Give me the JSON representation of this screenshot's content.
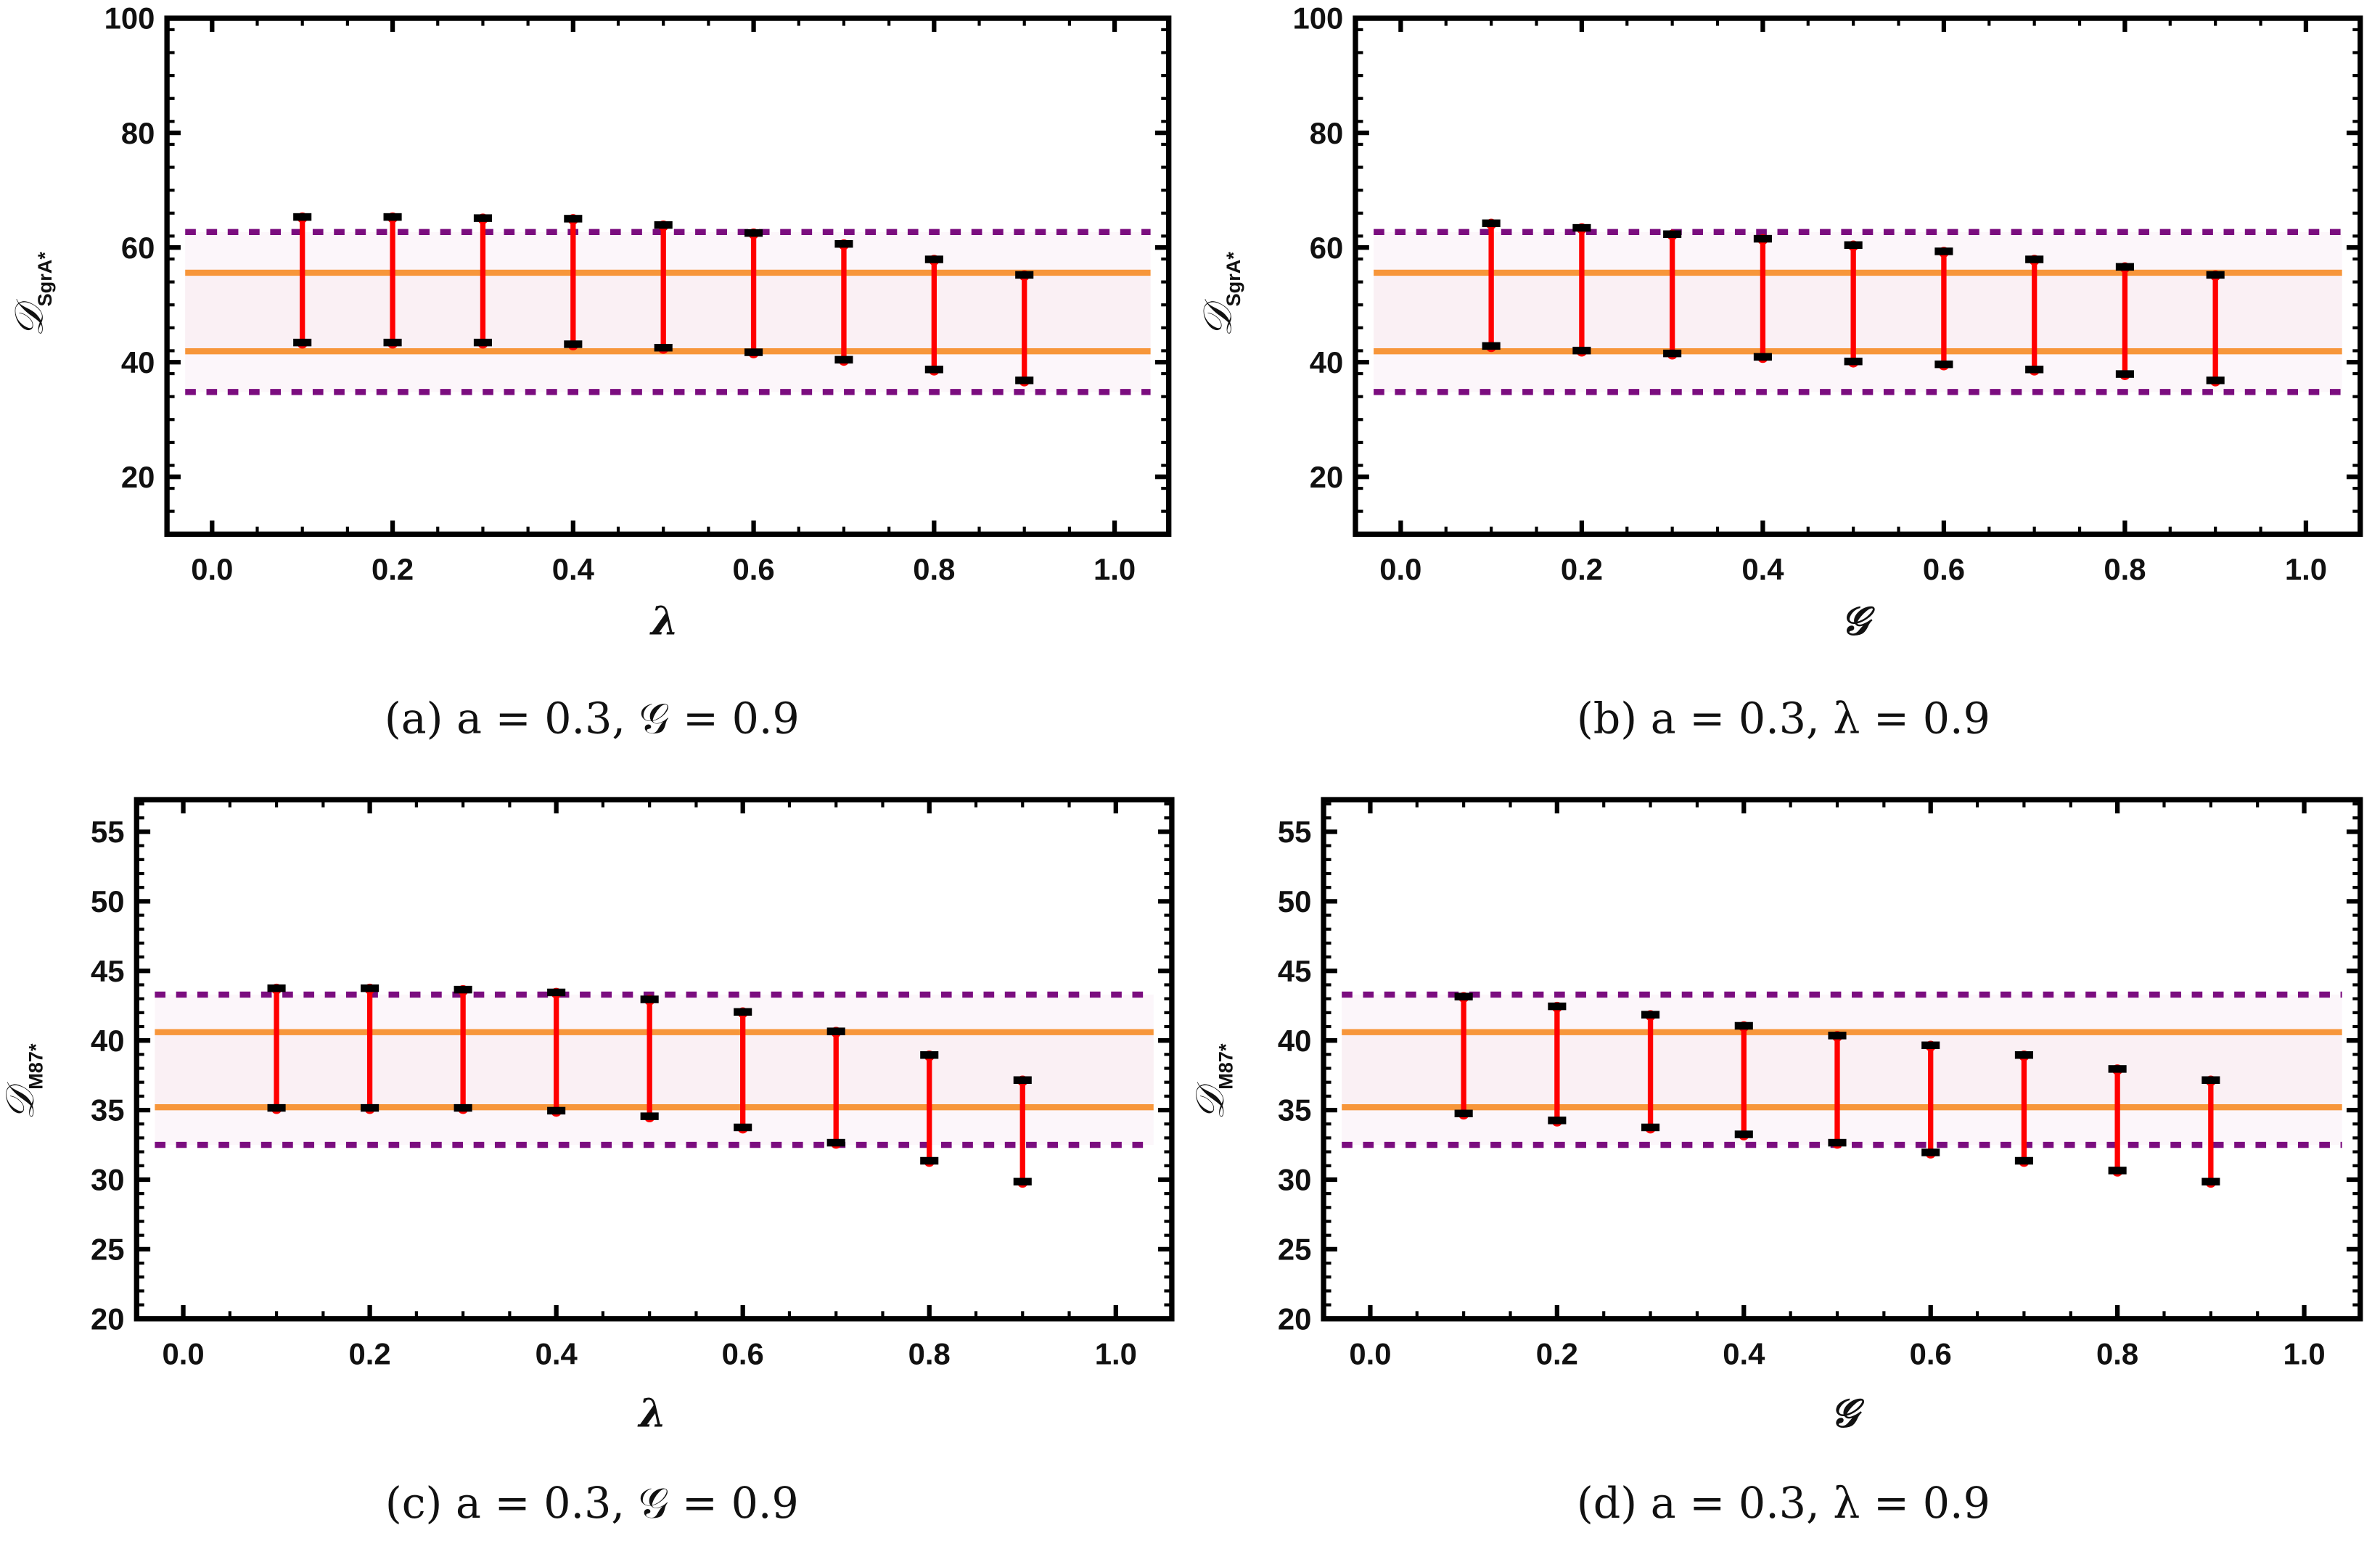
{
  "chart_data": [
    {
      "type": "errorbar",
      "caption": "(a)  a = 0.3, 𝒢 = 0.9",
      "xlabel": "λ",
      "ylabel": "𝒟",
      "ylabel_sub": "SgrA*",
      "xlim": [
        -0.05,
        1.06
      ],
      "ylim": [
        10,
        100
      ],
      "xticks": [
        "0.0",
        "0.2",
        "0.4",
        "0.6",
        "0.8",
        "1.0"
      ],
      "yticks": [
        "20",
        "40",
        "60",
        "80",
        "100"
      ],
      "observed_band_outer": [
        34.8,
        62.7
      ],
      "observed_band_inner": [
        41.9,
        55.6
      ],
      "x": [
        0.1,
        0.2,
        0.3,
        0.4,
        0.5,
        0.6,
        0.7,
        0.8,
        0.9
      ],
      "upper": [
        65.2,
        65.2,
        65.0,
        64.9,
        63.8,
        62.4,
        60.5,
        57.8,
        55.1
      ],
      "lower": [
        43.3,
        43.3,
        43.3,
        43.0,
        42.4,
        41.6,
        40.3,
        38.6,
        36.7
      ]
    },
    {
      "type": "errorbar",
      "caption": "(b)  a = 0.3, λ = 0.9",
      "xlabel": "𝒢",
      "ylabel": "𝒟",
      "ylabel_sub": "SgrA*",
      "xlim": [
        -0.05,
        1.06
      ],
      "ylim": [
        10,
        100
      ],
      "xticks": [
        "0.0",
        "0.2",
        "0.4",
        "0.6",
        "0.8",
        "1.0"
      ],
      "yticks": [
        "20",
        "40",
        "60",
        "80",
        "100"
      ],
      "observed_band_outer": [
        34.8,
        62.7
      ],
      "observed_band_inner": [
        41.9,
        55.6
      ],
      "x": [
        0.1,
        0.2,
        0.3,
        0.4,
        0.5,
        0.6,
        0.7,
        0.8,
        0.9
      ],
      "upper": [
        64.1,
        63.3,
        62.2,
        61.4,
        60.3,
        59.2,
        57.8,
        56.5,
        55.1
      ],
      "lower": [
        42.7,
        41.9,
        41.4,
        40.8,
        40.0,
        39.5,
        38.6,
        37.8,
        36.7
      ]
    },
    {
      "type": "errorbar",
      "caption": "(c)  a = 0.3, 𝒢 = 0.9",
      "xlabel": "λ",
      "ylabel": "𝒟",
      "ylabel_sub": "M87*",
      "xlim": [
        -0.05,
        1.06
      ],
      "ylim": [
        20,
        57.3
      ],
      "xticks": [
        "0.0",
        "0.2",
        "0.4",
        "0.6",
        "0.8",
        "1.0"
      ],
      "yticks": [
        "20",
        "25",
        "30",
        "35",
        "40",
        "45",
        "50",
        "55"
      ],
      "observed_band_outer": [
        32.5,
        43.3
      ],
      "observed_band_inner": [
        35.2,
        40.6
      ],
      "x": [
        0.1,
        0.2,
        0.3,
        0.4,
        0.5,
        0.6,
        0.7,
        0.8,
        0.9
      ],
      "upper": [
        43.7,
        43.7,
        43.6,
        43.4,
        42.9,
        42.0,
        40.6,
        38.9,
        37.1
      ],
      "lower": [
        35.1,
        35.1,
        35.1,
        34.9,
        34.5,
        33.7,
        32.6,
        31.3,
        29.8
      ]
    },
    {
      "type": "errorbar",
      "caption": "(d)  a = 0.3, λ = 0.9",
      "xlabel": "𝒢",
      "ylabel": "𝒟",
      "ylabel_sub": "M87*",
      "xlim": [
        -0.05,
        1.06
      ],
      "ylim": [
        20,
        57.3
      ],
      "xticks": [
        "0.0",
        "0.2",
        "0.4",
        "0.6",
        "0.8",
        "1.0"
      ],
      "yticks": [
        "20",
        "25",
        "30",
        "35",
        "40",
        "45",
        "50",
        "55"
      ],
      "observed_band_outer": [
        32.5,
        43.3
      ],
      "observed_band_inner": [
        35.2,
        40.6
      ],
      "x": [
        0.1,
        0.2,
        0.3,
        0.4,
        0.5,
        0.6,
        0.7,
        0.8,
        0.9
      ],
      "upper": [
        43.1,
        42.4,
        41.8,
        41.0,
        40.3,
        39.6,
        38.9,
        37.9,
        37.1
      ],
      "lower": [
        34.7,
        34.2,
        33.7,
        33.2,
        32.6,
        31.9,
        31.3,
        30.6,
        29.8
      ]
    }
  ],
  "colors": {
    "errorbar": "#ff0000",
    "cap": "#000000",
    "inner_line": "#f7963a",
    "outer_line": "#7b0d7f",
    "band_outer": "#fcf6fa",
    "band_inner": "#faf0f4"
  }
}
